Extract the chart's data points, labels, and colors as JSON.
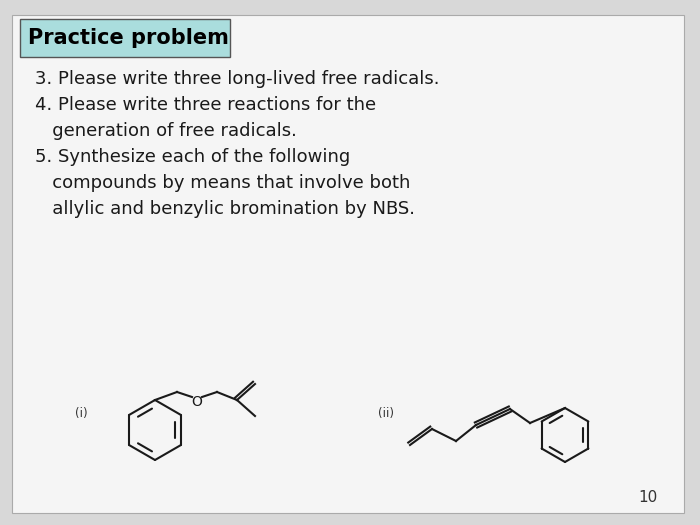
{
  "bg_color": "#d8d8d8",
  "slide_bg": "#f5f5f5",
  "header_bg": "#aadddd",
  "header_text": "Practice problem",
  "header_fontsize": 15,
  "body_lines": [
    "3. Please write three long-lived free radicals.",
    "4. Please write three reactions for the",
    "   generation of free radicals.",
    "5. Synthesize each of the following",
    "   compounds by means that involve both",
    "   allylic and benzylic bromination by NBS."
  ],
  "body_fontsize": 13,
  "label_i": "(i)",
  "label_ii": "(ii)",
  "page_number": "10",
  "line_color": "#1a1a1a",
  "line_width": 1.5
}
